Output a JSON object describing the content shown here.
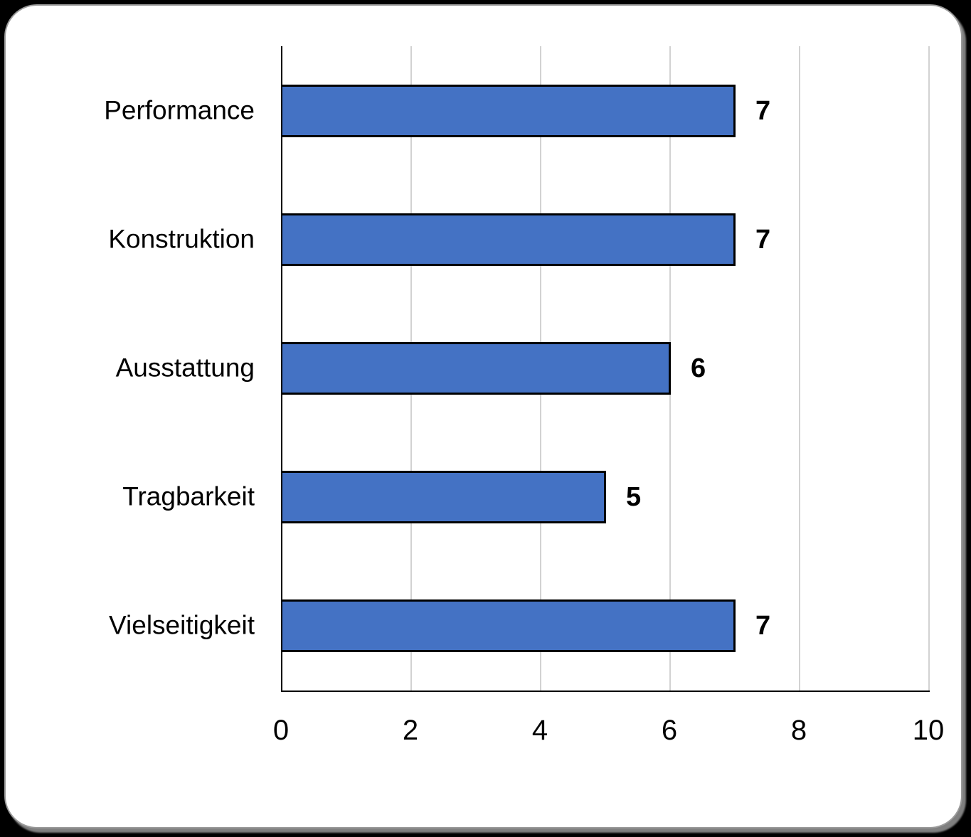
{
  "page": {
    "background_color": "#000000",
    "card_background_color": "#ffffff",
    "card_border_color": "#9a9a9a"
  },
  "chart_data": {
    "type": "bar",
    "orientation": "horizontal",
    "title": "",
    "xlabel": "",
    "ylabel": "",
    "categories": [
      "Performance",
      "Konstruktion",
      "Ausstattung",
      "Tragbarkeit",
      "Vielseitigkeit"
    ],
    "values": [
      7,
      7,
      6,
      5,
      7
    ],
    "data_labels": [
      "7",
      "7",
      "6",
      "5",
      "7"
    ],
    "xlim": [
      0,
      10
    ],
    "x_ticks": [
      "0",
      "2",
      "4",
      "6",
      "8",
      "10"
    ],
    "x_tick_values": [
      0,
      2,
      4,
      6,
      8,
      10
    ],
    "grid": "vertical-on",
    "legend": "none",
    "bar_color": "#4472C4",
    "bar_border_color": "#000000",
    "gridline_color": "#d2d2d2",
    "axis_line_color": "#000000",
    "text_color": "#000000"
  }
}
